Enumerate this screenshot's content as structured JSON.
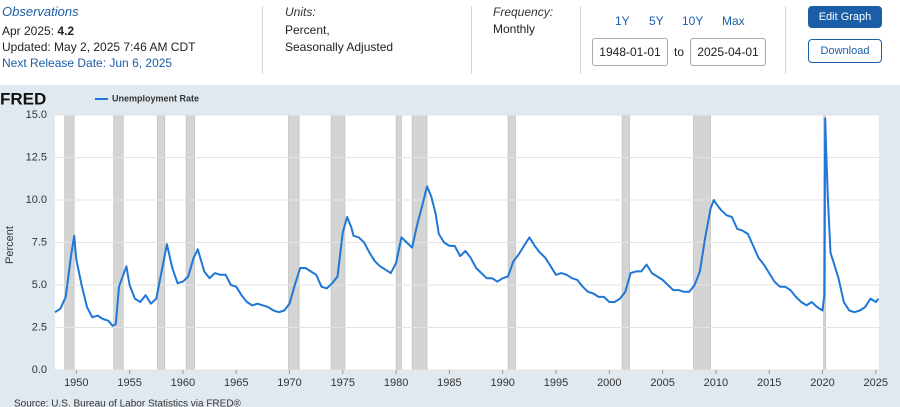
{
  "header": {
    "observations": "Observations",
    "latest_label": "Apr 2025:",
    "latest_value": "4.2",
    "updated": "Updated: May 2, 2025 7:46 AM CDT",
    "next_release": "Next Release Date: Jun 6, 2025",
    "units_label": "Units:",
    "units": [
      "Percent,",
      "Seasonally Adjusted"
    ],
    "frequency_label": "Frequency:",
    "frequency": "Monthly",
    "ranges": [
      "1Y",
      "5Y",
      "10Y",
      "Max"
    ],
    "start_date": "1948-01-01",
    "to": "to",
    "end_date": "2025-04-01",
    "edit_graph": "Edit Graph",
    "download": "Download"
  },
  "chart_data": {
    "type": "line",
    "logo": "FRED",
    "ylabel": "Percent",
    "source": "Source: U.S. Bureau of Labor Statistics via FRED®",
    "x": [
      1948,
      1948.5,
      1949,
      1949.5,
      1949.8,
      1950,
      1950.5,
      1951,
      1951.5,
      1952,
      1952.5,
      1953,
      1953.4,
      1953.7,
      1954,
      1954.7,
      1955,
      1955.5,
      1956,
      1956.5,
      1957,
      1957.5,
      1958,
      1958.5,
      1959,
      1959.5,
      1960,
      1960.5,
      1961,
      1961.4,
      1962,
      1962.5,
      1963,
      1963.5,
      1964,
      1964.5,
      1965,
      1965.5,
      1966,
      1966.5,
      1967,
      1967.5,
      1968,
      1968.5,
      1969,
      1969.5,
      1970,
      1970.5,
      1971,
      1971.5,
      1972,
      1972.5,
      1973,
      1973.5,
      1974,
      1974.5,
      1975,
      1975.4,
      1975.8,
      1976,
      1976.5,
      1977,
      1977.5,
      1978,
      1978.5,
      1979,
      1979.5,
      1980,
      1980.5,
      1981,
      1981.5,
      1982,
      1982.5,
      1982.9,
      1983.3,
      1983.7,
      1984,
      1984.5,
      1985,
      1985.5,
      1986,
      1986.5,
      1987,
      1987.5,
      1988,
      1988.5,
      1989,
      1989.5,
      1990,
      1990.5,
      1991,
      1991.5,
      1992,
      1992.5,
      1993,
      1993.5,
      1994,
      1994.5,
      1995,
      1995.5,
      1996,
      1996.5,
      1997,
      1997.5,
      1998,
      1998.5,
      1999,
      1999.5,
      2000,
      2000.5,
      2001,
      2001.5,
      2002,
      2002.5,
      2003,
      2003.5,
      2004,
      2004.5,
      2005,
      2005.5,
      2006,
      2006.5,
      2007,
      2007.5,
      2008,
      2008.5,
      2009,
      2009.5,
      2009.8,
      2010,
      2010.5,
      2011,
      2011.5,
      2012,
      2012.5,
      2013,
      2013.5,
      2014,
      2014.5,
      2015,
      2015.5,
      2016,
      2016.5,
      2017,
      2017.5,
      2018,
      2018.5,
      2019,
      2019.5,
      2020,
      2020.17,
      2020.25,
      2020.33,
      2020.5,
      2020.75,
      2021,
      2021.5,
      2022,
      2022.5,
      2023,
      2023.5,
      2024,
      2024.5,
      2025,
      2025.25
    ],
    "series": [
      {
        "name": "Unemployment Rate",
        "color": "#1f77d6",
        "values": [
          3.4,
          3.6,
          4.3,
          6.7,
          7.9,
          6.5,
          5.0,
          3.7,
          3.1,
          3.2,
          3.0,
          2.9,
          2.6,
          2.7,
          4.9,
          6.1,
          5.0,
          4.2,
          4.0,
          4.4,
          3.9,
          4.2,
          5.8,
          7.4,
          6.0,
          5.1,
          5.2,
          5.5,
          6.6,
          7.1,
          5.8,
          5.4,
          5.7,
          5.6,
          5.6,
          5.0,
          4.9,
          4.4,
          4.0,
          3.8,
          3.9,
          3.8,
          3.7,
          3.5,
          3.4,
          3.5,
          3.9,
          5.0,
          6.0,
          6.0,
          5.8,
          5.6,
          4.9,
          4.8,
          5.1,
          5.5,
          8.1,
          9.0,
          8.4,
          7.9,
          7.8,
          7.5,
          6.9,
          6.4,
          6.1,
          5.9,
          5.7,
          6.3,
          7.8,
          7.5,
          7.2,
          8.6,
          9.8,
          10.8,
          10.2,
          9.2,
          8.0,
          7.5,
          7.3,
          7.3,
          6.7,
          7.0,
          6.6,
          6.0,
          5.7,
          5.4,
          5.4,
          5.2,
          5.4,
          5.5,
          6.4,
          6.8,
          7.3,
          7.8,
          7.3,
          6.9,
          6.6,
          6.1,
          5.6,
          5.7,
          5.6,
          5.4,
          5.3,
          4.9,
          4.6,
          4.5,
          4.3,
          4.3,
          4.0,
          4.0,
          4.2,
          4.6,
          5.7,
          5.8,
          5.8,
          6.2,
          5.7,
          5.5,
          5.3,
          5.0,
          4.7,
          4.7,
          4.6,
          4.6,
          5.0,
          5.8,
          7.8,
          9.5,
          10.0,
          9.8,
          9.4,
          9.1,
          9.0,
          8.3,
          8.2,
          8.0,
          7.3,
          6.6,
          6.2,
          5.7,
          5.2,
          4.9,
          4.9,
          4.7,
          4.3,
          4.0,
          3.8,
          4.0,
          3.7,
          3.5,
          4.4,
          14.8,
          13.2,
          10.2,
          6.9,
          6.4,
          5.4,
          4.0,
          3.5,
          3.4,
          3.5,
          3.7,
          4.2,
          4.0,
          4.2
        ]
      }
    ],
    "recessions": [
      [
        1948.9,
        1949.8
      ],
      [
        1953.5,
        1954.4
      ],
      [
        1957.6,
        1958.3
      ],
      [
        1960.3,
        1961.1
      ],
      [
        1969.9,
        1970.9
      ],
      [
        1973.9,
        1975.2
      ],
      [
        1980.0,
        1980.5
      ],
      [
        1981.5,
        1982.9
      ],
      [
        1990.5,
        1991.2
      ],
      [
        2001.2,
        2001.9
      ],
      [
        2007.9,
        2009.5
      ],
      [
        2020.1,
        2020.3
      ]
    ],
    "xlim": [
      1948,
      2025.3
    ],
    "xticks": [
      1950,
      1955,
      1960,
      1965,
      1970,
      1975,
      1980,
      1985,
      1990,
      1995,
      2000,
      2005,
      2010,
      2015,
      2020,
      2025
    ],
    "ylim": [
      0,
      15
    ],
    "yticks": [
      {
        "value": 0,
        "label": "0.0"
      },
      {
        "value": 2.5,
        "label": "2.5"
      },
      {
        "value": 5,
        "label": "5.0"
      },
      {
        "value": 7.5,
        "label": "7.5"
      },
      {
        "value": 10,
        "label": "10.0"
      },
      {
        "value": 12.5,
        "label": "12.5"
      },
      {
        "value": 15,
        "label": "15.0"
      }
    ],
    "grid": true
  }
}
